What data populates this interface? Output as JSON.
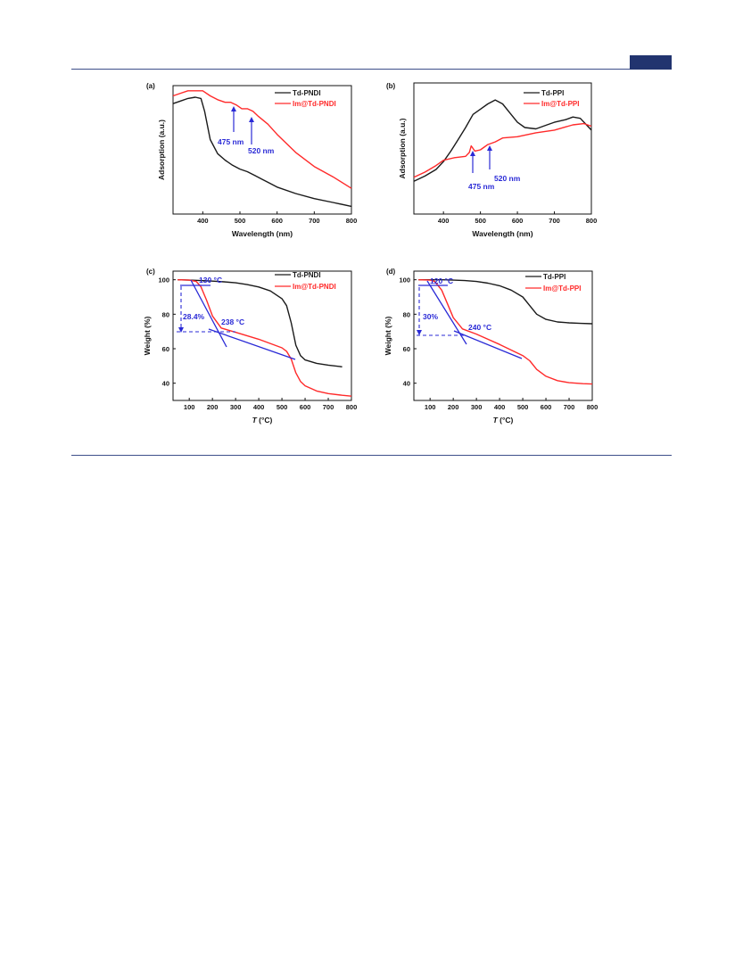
{
  "page": {
    "colors": {
      "rule": "#3d4f8a",
      "tab": "#22346f",
      "black_series": "#1a1a1a",
      "red_series": "#ff2a2a",
      "annotation": "#2a2ad6"
    }
  },
  "chart_data": [
    {
      "panel": "(a)",
      "type": "line",
      "xlabel": "Wavelength (nm)",
      "ylabel": "Adsorption (a.u.)",
      "xlim": [
        320,
        800
      ],
      "ylim": [
        0,
        1
      ],
      "xticks": [
        400,
        500,
        600,
        700,
        800
      ],
      "yticks": [],
      "legend_position": "top-right",
      "series": [
        {
          "name": "Td-PNDI",
          "color": "#1a1a1a",
          "x": [
            320,
            340,
            360,
            380,
            395,
            405,
            420,
            440,
            460,
            480,
            500,
            520,
            540,
            560,
            580,
            600,
            650,
            700,
            750,
            800
          ],
          "y": [
            0.86,
            0.88,
            0.9,
            0.91,
            0.9,
            0.8,
            0.58,
            0.47,
            0.42,
            0.38,
            0.35,
            0.33,
            0.3,
            0.27,
            0.24,
            0.21,
            0.16,
            0.12,
            0.09,
            0.06
          ]
        },
        {
          "name": "Im@Td-PNDI",
          "color": "#ff2a2a",
          "x": [
            320,
            340,
            360,
            380,
            400,
            420,
            440,
            460,
            475,
            490,
            505,
            520,
            535,
            550,
            575,
            600,
            650,
            700,
            750,
            800
          ],
          "y": [
            0.92,
            0.94,
            0.96,
            0.96,
            0.96,
            0.92,
            0.89,
            0.87,
            0.87,
            0.85,
            0.82,
            0.82,
            0.8,
            0.76,
            0.7,
            0.62,
            0.48,
            0.37,
            0.29,
            0.2
          ]
        }
      ],
      "annotations": [
        "475 nm",
        "520 nm"
      ]
    },
    {
      "panel": "(b)",
      "type": "line",
      "xlabel": "Wavelength (nm)",
      "ylabel": "Adsorption (a.u.)",
      "xlim": [
        320,
        800
      ],
      "ylim": [
        0,
        1
      ],
      "xticks": [
        400,
        500,
        600,
        700,
        800
      ],
      "yticks": [],
      "legend_position": "top-right",
      "series": [
        {
          "name": "Td-PPI",
          "color": "#1a1a1a",
          "x": [
            320,
            350,
            380,
            400,
            420,
            440,
            460,
            480,
            500,
            520,
            540,
            560,
            580,
            600,
            620,
            650,
            680,
            700,
            730,
            750,
            770,
            790,
            800
          ],
          "y": [
            0.25,
            0.29,
            0.34,
            0.4,
            0.48,
            0.57,
            0.66,
            0.76,
            0.8,
            0.84,
            0.87,
            0.84,
            0.77,
            0.7,
            0.66,
            0.65,
            0.68,
            0.7,
            0.72,
            0.74,
            0.73,
            0.67,
            0.64
          ]
        },
        {
          "name": "Im@Td-PPI",
          "color": "#ff2a2a",
          "x": [
            320,
            350,
            380,
            400,
            430,
            460,
            470,
            475,
            485,
            500,
            510,
            520,
            540,
            560,
            600,
            650,
            700,
            750,
            780,
            800
          ],
          "y": [
            0.28,
            0.32,
            0.37,
            0.41,
            0.43,
            0.44,
            0.47,
            0.52,
            0.48,
            0.49,
            0.51,
            0.53,
            0.55,
            0.58,
            0.59,
            0.62,
            0.64,
            0.68,
            0.69,
            0.67
          ]
        }
      ],
      "annotations": [
        "475 nm",
        "520 nm"
      ]
    },
    {
      "panel": "(c)",
      "type": "line",
      "xlabel_pre": "T",
      "xlabel_post": " (°C)",
      "ylabel": "Weight (%)",
      "xlim": [
        30,
        800
      ],
      "ylim": [
        30,
        105
      ],
      "xticks": [
        100,
        200,
        300,
        400,
        500,
        600,
        700,
        800
      ],
      "yticks": [
        40,
        60,
        80,
        100
      ],
      "legend_position": "top-right",
      "series": [
        {
          "name": "Td-PNDI",
          "color": "#1a1a1a",
          "x": [
            50,
            100,
            150,
            200,
            250,
            300,
            350,
            400,
            450,
            500,
            520,
            540,
            560,
            580,
            600,
            650,
            700,
            760
          ],
          "y": [
            100,
            99.8,
            99.5,
            99.2,
            98.8,
            98.2,
            97.2,
            95.8,
            93.5,
            89,
            85,
            75,
            62,
            56,
            53.5,
            51.5,
            50.5,
            49.5
          ]
        },
        {
          "name": "Im@Td-PNDI",
          "color": "#ff2a2a",
          "x": [
            50,
            100,
            130,
            150,
            175,
            200,
            238,
            300,
            400,
            500,
            520,
            540,
            560,
            580,
            600,
            650,
            700,
            760,
            800
          ],
          "y": [
            100,
            99.8,
            99,
            96,
            88,
            79,
            72,
            69.5,
            65.5,
            60.5,
            58.5,
            54,
            46,
            41,
            38.5,
            35.5,
            34,
            33,
            32.5
          ]
        }
      ],
      "annotations": [
        "130 °C",
        "238 °C",
        "28.4%"
      ]
    },
    {
      "panel": "(d)",
      "type": "line",
      "xlabel_pre": "T",
      "xlabel_post": " (°C)",
      "ylabel": "Weight (%)",
      "xlim": [
        30,
        800
      ],
      "ylim": [
        30,
        105
      ],
      "xticks": [
        100,
        200,
        300,
        400,
        500,
        600,
        700,
        800
      ],
      "yticks": [
        40,
        60,
        80,
        100
      ],
      "legend_position": "top-right",
      "series": [
        {
          "name": "Td-PPI",
          "color": "#1a1a1a",
          "x": [
            50,
            100,
            150,
            200,
            250,
            300,
            350,
            400,
            450,
            500,
            530,
            560,
            600,
            650,
            700,
            750,
            800
          ],
          "y": [
            100,
            100,
            100,
            99.8,
            99.5,
            99,
            98,
            96.5,
            94,
            90,
            85,
            80,
            77,
            75.5,
            75,
            74.7,
            74.5
          ]
        },
        {
          "name": "Im@Td-PPI",
          "color": "#ff2a2a",
          "x": [
            50,
            100,
            120,
            150,
            175,
            200,
            240,
            300,
            400,
            500,
            530,
            560,
            600,
            650,
            700,
            760,
            800
          ],
          "y": [
            100,
            99.8,
            99,
            94,
            86,
            78,
            71.5,
            68.5,
            62.5,
            56,
            53,
            48,
            44,
            41.5,
            40.3,
            39.7,
            39.5
          ]
        }
      ],
      "annotations": [
        "120 °C",
        "240 °C",
        "30%"
      ]
    }
  ]
}
